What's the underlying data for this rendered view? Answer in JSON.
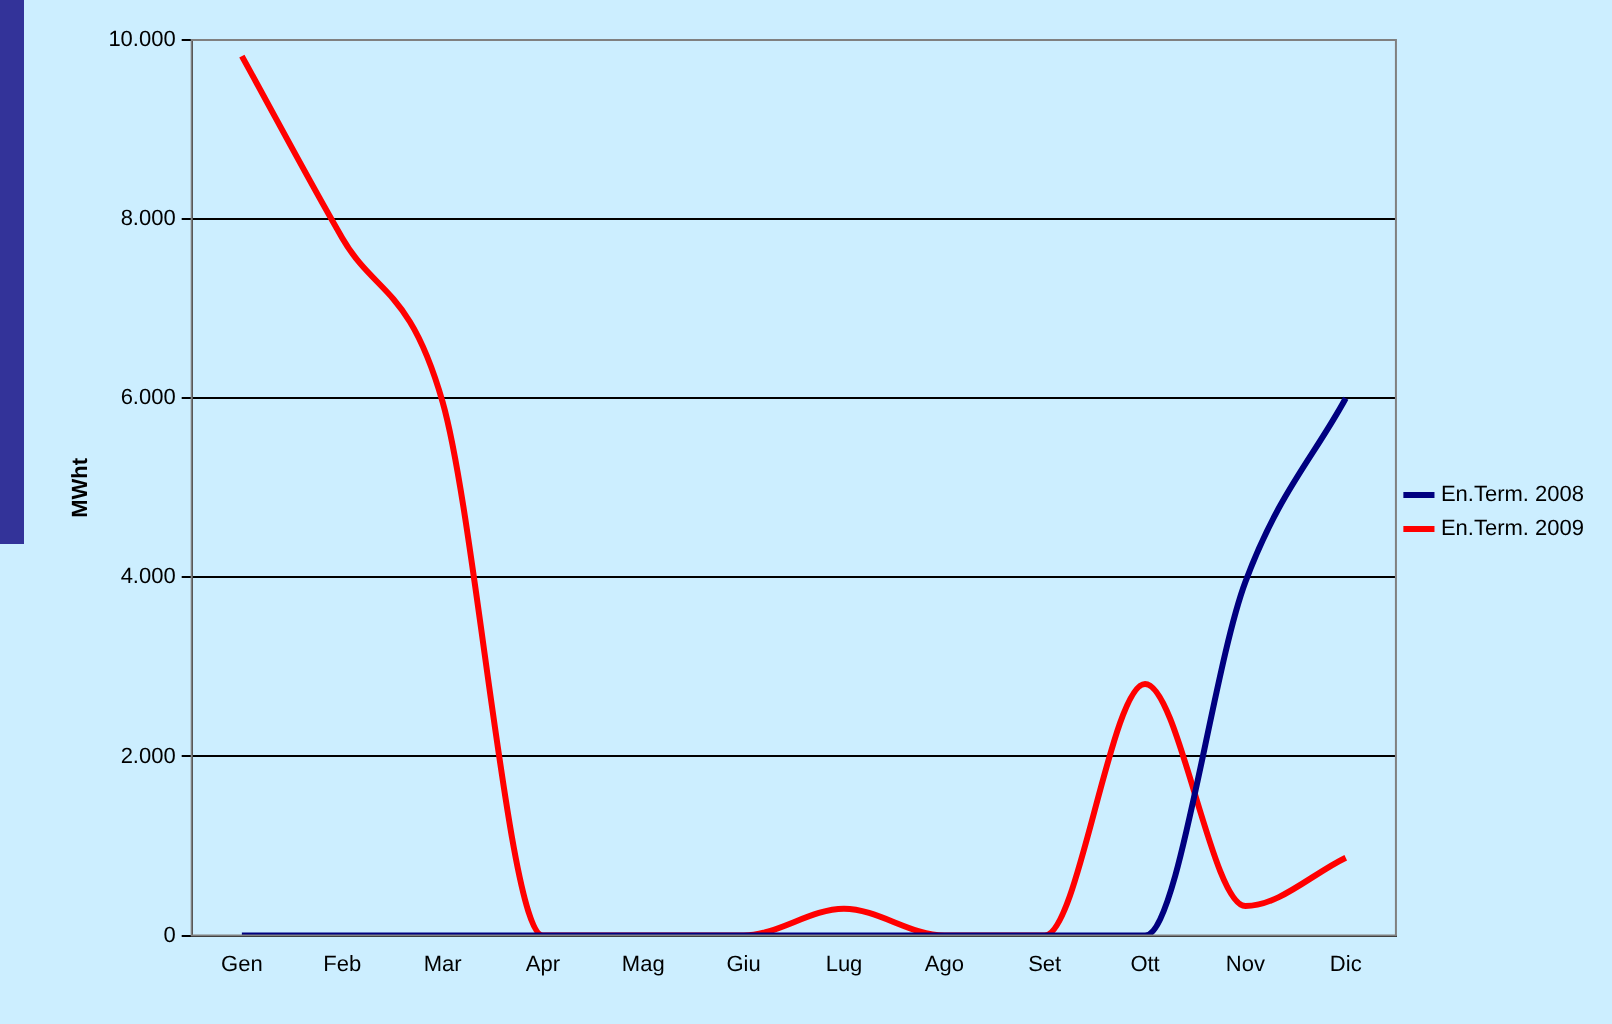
{
  "chart_data": {
    "type": "line",
    "ylabel": "MWht",
    "categories": [
      "Gen",
      "Feb",
      "Mar",
      "Apr",
      "Mag",
      "Giu",
      "Lug",
      "Ago",
      "Set",
      "Ott",
      "Nov",
      "Dic"
    ],
    "series": [
      {
        "name": "En.Term. 2008",
        "color": "#000080",
        "values": [
          0,
          0,
          0,
          0,
          0,
          0,
          0,
          0,
          0,
          0,
          3950,
          6000
        ]
      },
      {
        "name": "En.Term. 2009",
        "color": "#ff0000",
        "values": [
          9820,
          7790,
          5960,
          0,
          0,
          0,
          300,
          0,
          0,
          2810,
          330,
          870
        ]
      }
    ],
    "ylim": [
      0,
      10000
    ],
    "yticks": [
      0,
      {
        "value": 2000,
        "label": "2.000"
      },
      {
        "value": 4000,
        "label": "4.000"
      },
      {
        "value": 6000,
        "label": "6.000"
      },
      {
        "value": 8000,
        "label": "8.000"
      },
      {
        "value": 10000,
        "label": "10.000"
      }
    ],
    "grid": "y",
    "legend": "right",
    "marker": "none",
    "line_style": "solid"
  }
}
